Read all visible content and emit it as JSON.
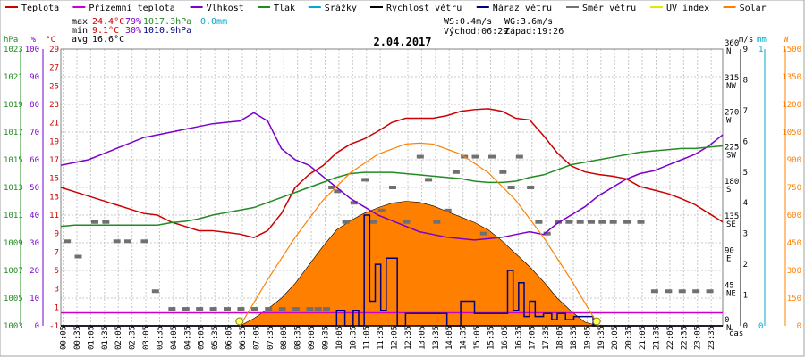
{
  "chart_data": {
    "type": "line",
    "title": "2.04.2017",
    "xlabel": "čas",
    "grid": true,
    "legend_position": "top",
    "legend": [
      {
        "name": "Teplota",
        "color": "#cc0000"
      },
      {
        "name": "Přízemní teplota",
        "color": "#cc00cc"
      },
      {
        "name": "Vlhkost",
        "color": "#7a00cc"
      },
      {
        "name": "Tlak",
        "color": "#228b22"
      },
      {
        "name": "Srážky",
        "color": "#00aacc"
      },
      {
        "name": "Rychlost větru",
        "color": "#000000"
      },
      {
        "name": "Náraz větru",
        "color": "#000080"
      },
      {
        "name": "Směr větru",
        "color": "#707070"
      },
      {
        "name": "UV index",
        "color": "#e6e600"
      },
      {
        "name": "Solar",
        "color": "#ff8000"
      }
    ],
    "stats": {
      "max": {
        "label": "max",
        "temp": "24.4°C",
        "hum": "79%",
        "press": "1017.3hPa",
        "rain": "0.0mm"
      },
      "min": {
        "label": "min",
        "temp": "9.1°C",
        "hum": "30%",
        "press": "1010.9hPa"
      },
      "avg": {
        "label": "avg",
        "temp": "16.6°C"
      },
      "ws": "WS:0.4m/s",
      "wg": "WG:3.6m/s",
      "sunrise": "Východ:06:29",
      "sunset": "Západ:19:26"
    },
    "x_ticks": [
      "00:05",
      "00:35",
      "01:05",
      "01:35",
      "02:05",
      "02:35",
      "03:05",
      "03:35",
      "04:05",
      "04:35",
      "05:05",
      "05:35",
      "06:05",
      "06:35",
      "07:05",
      "07:35",
      "08:05",
      "08:35",
      "09:05",
      "09:35",
      "10:05",
      "10:35",
      "11:05",
      "11:35",
      "12:05",
      "12:35",
      "13:05",
      "13:35",
      "14:05",
      "14:35",
      "15:05",
      "15:35",
      "16:05",
      "16:35",
      "17:05",
      "17:35",
      "18:05",
      "18:35",
      "19:05",
      "19:35",
      "20:05",
      "20:35",
      "21:05",
      "21:35",
      "22:05",
      "22:35",
      "23:05",
      "23:35"
    ],
    "xlim": [
      0,
      24
    ],
    "axes": {
      "pressure": {
        "unit": "hPa",
        "min": 1003,
        "max": 1025,
        "ticks": [
          "1003",
          "1005",
          "1007",
          "1009",
          "1011",
          "1013",
          "1015",
          "1017",
          "1019",
          "1021",
          "1023"
        ],
        "color": "#228b22"
      },
      "humidity": {
        "unit": "%",
        "min": 0,
        "max": 100,
        "ticks": [
          "0",
          "10",
          "20",
          "30",
          "40",
          "50",
          "60",
          "70",
          "80",
          "90",
          "100"
        ],
        "color": "#7a00cc"
      },
      "temperature": {
        "unit": "°C",
        "min": -1,
        "max": 31,
        "ticks": [
          "-1",
          "1",
          "3",
          "5",
          "7",
          "9",
          "11",
          "13",
          "15",
          "17",
          "19",
          "21",
          "23",
          "25",
          "27",
          "29"
        ],
        "color": "#cc0000"
      },
      "direction": {
        "min": 0,
        "max": 360,
        "ticks": [
          {
            "deg": "0",
            "dir": "N"
          },
          {
            "deg": "45",
            "dir": "NE"
          },
          {
            "deg": "90",
            "dir": "E"
          },
          {
            "deg": "135",
            "dir": "SE"
          },
          {
            "deg": "180",
            "dir": "S"
          },
          {
            "deg": "225",
            "dir": "SW"
          },
          {
            "deg": "270",
            "dir": "W"
          },
          {
            "deg": "315",
            "dir": "NW"
          },
          {
            "deg": "360",
            "dir": "N"
          }
        ]
      },
      "wind": {
        "unit": "m/s",
        "min": 0,
        "max": 9,
        "ticks": [
          "0",
          "1",
          "2",
          "3",
          "4",
          "5",
          "6",
          "7",
          "8",
          "9"
        ]
      },
      "rain": {
        "unit": "mm",
        "min": 0,
        "max": 1,
        "ticks": [
          "0",
          "1"
        ],
        "color": "#00aacc"
      },
      "solar": {
        "unit": "W",
        "min": 0,
        "max": 1500,
        "ticks": [
          "0",
          "150",
          "300",
          "450",
          "600",
          "750",
          "900",
          "1050",
          "1200",
          "1350",
          "1500"
        ],
        "color": "#ff8000"
      }
    },
    "series": [
      {
        "name": "Teplota",
        "axis": "temperature",
        "color": "#cc0000",
        "x": [
          0,
          0.5,
          1,
          1.5,
          2,
          2.5,
          3,
          3.5,
          4,
          4.5,
          5,
          5.5,
          6,
          6.5,
          7,
          7.5,
          8,
          8.5,
          9,
          9.5,
          10,
          10.5,
          11,
          11.5,
          12,
          12.5,
          13,
          13.5,
          14,
          14.5,
          15,
          15.5,
          16,
          16.5,
          17,
          17.5,
          18,
          18.5,
          19,
          19.5,
          20,
          20.5,
          21,
          21.5,
          22,
          22.5,
          23,
          23.5,
          24
        ],
        "values": [
          15,
          14.5,
          14,
          13.5,
          13,
          12.5,
          12,
          11.8,
          11,
          10.5,
          10,
          10,
          9.8,
          9.6,
          9.2,
          10,
          12,
          15,
          16.5,
          17.5,
          19,
          20,
          20.6,
          21.5,
          22.5,
          23,
          23,
          23,
          23.3,
          23.8,
          24,
          24.1,
          23.8,
          23,
          22.8,
          21,
          19,
          17.5,
          16.8,
          16.5,
          16.3,
          16,
          15.1,
          14.7,
          14.3,
          13.7,
          13,
          12,
          11
        ]
      },
      {
        "name": "Přízemní teplota",
        "axis": "temperature",
        "color": "#cc00cc",
        "x": [
          0,
          24
        ],
        "values": [
          0.5,
          0.5
        ]
      },
      {
        "name": "Vlhkost",
        "axis": "humidity",
        "color": "#7a00cc",
        "x": [
          0,
          0.5,
          1,
          1.5,
          2,
          2.5,
          3,
          3.5,
          4,
          4.5,
          5,
          5.5,
          6,
          6.5,
          7,
          7.5,
          8,
          8.5,
          9,
          9.5,
          10,
          10.5,
          11,
          11.5,
          12,
          12.5,
          13,
          13.5,
          14,
          14.5,
          15,
          15.5,
          16,
          16.5,
          17,
          17.5,
          18,
          18.5,
          19,
          19.5,
          20,
          20.5,
          21,
          21.5,
          22,
          22.5,
          23,
          23.5,
          24
        ],
        "values": [
          58,
          59,
          60,
          62,
          64,
          66,
          68,
          69,
          70,
          71,
          72,
          73,
          73.5,
          74,
          77,
          74,
          64,
          60,
          58,
          54,
          50,
          46,
          43,
          40,
          38,
          36,
          34,
          33,
          32,
          31.5,
          31,
          31.5,
          32,
          33,
          34,
          33,
          37,
          40,
          43,
          47,
          50,
          53,
          55,
          56,
          58,
          60,
          62,
          65,
          69
        ]
      },
      {
        "name": "Tlak",
        "axis": "pressure",
        "color": "#228b22",
        "x": [
          0,
          0.5,
          1,
          1.5,
          2,
          2.5,
          3,
          3.5,
          4,
          4.5,
          5,
          5.5,
          6,
          6.5,
          7,
          7.5,
          8,
          8.5,
          9,
          9.5,
          10,
          10.5,
          11,
          11.5,
          12,
          12.5,
          13,
          13.5,
          14,
          14.5,
          15,
          15.5,
          16,
          16.5,
          17,
          17.5,
          18,
          18.5,
          19,
          19.5,
          20,
          20.5,
          21,
          21.5,
          22,
          22.5,
          23,
          23.5,
          24
        ],
        "values": [
          1010.9,
          1011,
          1011,
          1011,
          1011,
          1011,
          1011,
          1011,
          1011.2,
          1011.3,
          1011.5,
          1011.8,
          1012,
          1012.2,
          1012.4,
          1012.8,
          1013.2,
          1013.6,
          1014,
          1014.4,
          1014.8,
          1015.1,
          1015.2,
          1015.2,
          1015.2,
          1015.1,
          1015,
          1014.9,
          1014.8,
          1014.7,
          1014.5,
          1014.4,
          1014.4,
          1014.5,
          1014.8,
          1015,
          1015.4,
          1015.8,
          1016,
          1016.2,
          1016.4,
          1016.6,
          1016.8,
          1016.9,
          1017,
          1017.1,
          1017.1,
          1017.2,
          1017.3
        ]
      },
      {
        "name": "Náraz větru",
        "axis": "wind",
        "color": "#000080",
        "x": [
          0,
          9,
          9.8,
          10,
          10.3,
          10.6,
          10.8,
          11,
          11.2,
          11.4,
          11.6,
          11.8,
          12,
          12.2,
          12.5,
          13,
          13.5,
          14,
          14.5,
          15,
          15.5,
          15.8,
          16,
          16.2,
          16.4,
          16.6,
          16.8,
          17,
          17.2,
          17.5,
          17.8,
          18,
          18.3,
          18.6,
          19,
          19.3,
          24
        ],
        "values": [
          0,
          0,
          0,
          0.5,
          0,
          0.5,
          0,
          3.6,
          0.8,
          2,
          0.5,
          2.2,
          2.2,
          0,
          0.4,
          0.4,
          0.4,
          0,
          0.8,
          0.4,
          0.4,
          0.4,
          0.4,
          1.8,
          0.5,
          1.4,
          0.3,
          0.8,
          0.3,
          0.4,
          0.2,
          0.4,
          0.2,
          0.3,
          0.3,
          0,
          0
        ]
      },
      {
        "name": "Rychlost větru",
        "axis": "wind",
        "color": "#000000",
        "x": [
          0,
          24
        ],
        "values": [
          0,
          0
        ]
      },
      {
        "name": "Solar",
        "axis": "solar",
        "color": "#ff8000",
        "fill": true,
        "x": [
          6.5,
          7,
          7.5,
          8,
          8.5,
          9,
          9.5,
          10,
          10.5,
          11,
          11.5,
          12,
          12.5,
          13,
          13.5,
          14,
          14.5,
          15,
          15.5,
          16,
          16.5,
          17,
          17.5,
          18,
          18.5,
          19,
          19.5
        ],
        "values": [
          0,
          40,
          90,
          150,
          230,
          330,
          430,
          520,
          570,
          610,
          640,
          665,
          675,
          670,
          650,
          620,
          590,
          560,
          520,
          460,
          390,
          320,
          240,
          150,
          80,
          20,
          0
        ]
      },
      {
        "name": "Solar (clear sky)",
        "axis": "solar",
        "color": "#ff8000",
        "x": [
          6.5,
          7.5,
          8.5,
          9.5,
          10.5,
          11.5,
          12.5,
          13,
          13.5,
          14.5,
          15.5,
          16.5,
          17.5,
          18.5,
          19.5
        ],
        "values": [
          0,
          250,
          480,
          680,
          830,
          930,
          985,
          990,
          985,
          930,
          830,
          680,
          480,
          250,
          0
        ]
      },
      {
        "name": "Směr větru",
        "axis": "direction",
        "color": "#707070",
        "type": "scatter",
        "x": [
          0.2,
          0.6,
          1.2,
          1.6,
          2,
          2.4,
          3,
          3.4,
          4,
          4.5,
          5,
          5.5,
          6,
          6.5,
          7,
          7.5,
          8,
          8.5,
          9,
          9.3,
          9.6,
          9.8,
          10,
          10.3,
          10.6,
          11,
          11.3,
          11.6,
          12,
          12.5,
          13,
          13.3,
          13.6,
          14,
          14.3,
          14.6,
          15,
          15.3,
          15.6,
          16,
          16.3,
          16.6,
          17,
          17.3,
          17.6,
          18,
          18.4,
          18.8,
          19.2,
          19.6,
          20,
          20.5,
          21,
          21.5,
          22,
          22.5,
          23,
          23.5
        ],
        "values": [
          110,
          90,
          135,
          135,
          110,
          110,
          110,
          45,
          22,
          22,
          22,
          22,
          22,
          22,
          22,
          22,
          22,
          22,
          22,
          22,
          22,
          180,
          175,
          135,
          160,
          190,
          135,
          150,
          180,
          135,
          220,
          190,
          135,
          150,
          200,
          220,
          220,
          120,
          220,
          200,
          180,
          220,
          180,
          135,
          120,
          135,
          135,
          135,
          135,
          135,
          135,
          135,
          135,
          45,
          45,
          45,
          45,
          45
        ]
      },
      {
        "name": "UV index",
        "axis": "wind",
        "color": "#e6e600",
        "type": "scatter",
        "x": [
          6.48,
          19.43
        ],
        "values": [
          0,
          0
        ]
      }
    ]
  }
}
